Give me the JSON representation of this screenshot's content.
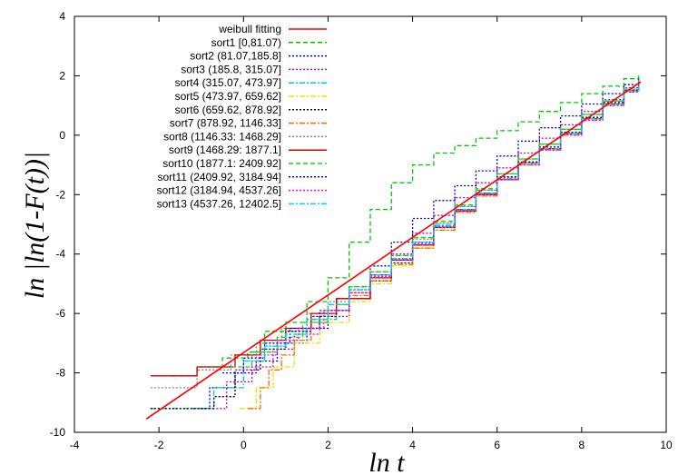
{
  "chart_data": {
    "type": "line",
    "xlabel": "ln t",
    "ylabel": "ln |ln(1-F(t))|",
    "xlim": [
      -4,
      10
    ],
    "ylim": [
      -10,
      4
    ],
    "xticks": [
      "-4",
      "-2",
      "0",
      "2",
      "4",
      "6",
      "8",
      "10"
    ],
    "yticks": [
      "-10",
      "-8",
      "-6",
      "-4",
      "-2",
      "0",
      "2",
      "4"
    ],
    "legend_position": "top-left",
    "series": [
      {
        "name": "weibull fitting",
        "color": "#ff0000",
        "dash": "solid",
        "step": false,
        "x": [
          -2.3,
          9.4
        ],
        "y": [
          -9.55,
          1.8
        ]
      },
      {
        "name": "sort1 [0,81.07)",
        "color": "#00c800",
        "dash": "dashed",
        "step": true,
        "x": [
          -1.7,
          -1.1,
          -0.5,
          0.1,
          0.5,
          1.0,
          1.5,
          2.0,
          2.5,
          3.0,
          3.5,
          4.0,
          4.5,
          5.0,
          5.5,
          6.0,
          6.5,
          7.0,
          7.5,
          8.0,
          8.5,
          9.0,
          9.35
        ],
        "y": [
          -8.1,
          -7.8,
          -7.5,
          -7.3,
          -6.6,
          -6.3,
          -5.6,
          -4.8,
          -3.6,
          -2.5,
          -1.6,
          -1.0,
          -0.6,
          -0.35,
          -0.1,
          0.15,
          0.45,
          0.8,
          1.1,
          1.4,
          1.65,
          1.9,
          2.05
        ]
      },
      {
        "name": "sort2 (81.07,185.8]",
        "color": "#0000cc",
        "dash": "dotted",
        "step": true,
        "x": [
          -1.2,
          -0.8,
          -0.2,
          0.3,
          0.8,
          1.5,
          2.0,
          2.5,
          3.0,
          3.5,
          4.0,
          4.5,
          5.0,
          5.5,
          6.0,
          6.5,
          7.0,
          7.5,
          8.0,
          8.5,
          9.0,
          9.35
        ],
        "y": [
          -9.2,
          -8.5,
          -8.0,
          -7.6,
          -7.0,
          -6.5,
          -5.9,
          -5.2,
          -4.4,
          -3.6,
          -2.8,
          -2.2,
          -1.7,
          -1.2,
          -0.7,
          -0.2,
          0.25,
          0.65,
          1.05,
          1.4,
          1.7,
          1.9
        ]
      },
      {
        "name": "sort3 (185.8, 315.07]",
        "color": "#cc00cc",
        "dash": "dotted",
        "step": true,
        "x": [
          -0.9,
          -0.4,
          0.2,
          0.7,
          1.2,
          1.8,
          2.5,
          3.0,
          3.5,
          4.0,
          4.5,
          5.0,
          5.5,
          6.0,
          6.5,
          7.0,
          7.5,
          8.0,
          8.5,
          9.0,
          9.35
        ],
        "y": [
          -9.2,
          -8.3,
          -7.8,
          -7.2,
          -6.7,
          -6.1,
          -5.3,
          -4.7,
          -4.0,
          -3.3,
          -2.7,
          -2.1,
          -1.6,
          -1.1,
          -0.6,
          -0.1,
          0.35,
          0.8,
          1.2,
          1.6,
          1.85
        ]
      },
      {
        "name": "sort4 (315.07, 473.97]",
        "color": "#00cccc",
        "dash": "dashdot",
        "step": true,
        "x": [
          -2.2,
          -0.7,
          0.0,
          0.5,
          1.0,
          1.6,
          2.2,
          3.0,
          3.5,
          4.0,
          4.5,
          5.0,
          5.5,
          6.0,
          6.5,
          7.0,
          7.5,
          8.0,
          8.5,
          9.0,
          9.35
        ],
        "y": [
          -9.2,
          -8.5,
          -7.6,
          -7.1,
          -6.6,
          -6.2,
          -5.5,
          -4.8,
          -4.2,
          -3.6,
          -3.0,
          -2.4,
          -1.85,
          -1.3,
          -0.8,
          -0.3,
          0.2,
          0.7,
          1.15,
          1.55,
          1.85
        ]
      },
      {
        "name": "sort5 (473.97, 659.62]",
        "color": "#e6e600",
        "dash": "dashdot",
        "step": true,
        "x": [
          -0.1,
          0.3,
          0.7,
          1.2,
          1.8,
          2.5,
          3.0,
          3.5,
          4.0,
          4.5,
          5.0,
          5.5,
          6.0,
          6.5,
          7.0,
          7.5,
          8.0,
          8.5,
          9.0,
          9.35
        ],
        "y": [
          -9.2,
          -8.5,
          -7.8,
          -7.0,
          -6.3,
          -5.6,
          -5.0,
          -4.4,
          -3.8,
          -3.2,
          -2.6,
          -2.05,
          -1.5,
          -1.0,
          -0.45,
          0.05,
          0.55,
          1.05,
          1.5,
          1.8
        ]
      },
      {
        "name": "sort6 (659.62, 878.92]",
        "color": "#000000",
        "dash": "dotted",
        "step": true,
        "x": [
          -2.2,
          -0.7,
          -0.2,
          0.4,
          1.0,
          1.6,
          2.2,
          3.0,
          3.5,
          4.0,
          4.5,
          5.0,
          5.5,
          6.0,
          6.5,
          7.0,
          7.5,
          8.0,
          8.5,
          9.0,
          9.35
        ],
        "y": [
          -9.2,
          -8.8,
          -7.9,
          -7.2,
          -6.6,
          -6.1,
          -5.5,
          -4.9,
          -4.3,
          -3.7,
          -3.1,
          -2.5,
          -1.95,
          -1.4,
          -0.9,
          -0.4,
          0.1,
          0.6,
          1.1,
          1.5,
          1.8
        ]
      },
      {
        "name": "sort7 (878.92, 1146.33]",
        "color": "#ff6600",
        "dash": "dashdot",
        "step": true,
        "x": [
          0.1,
          0.4,
          0.6,
          0.9,
          1.2,
          1.6,
          2.0,
          2.5,
          3.0,
          3.5,
          4.0,
          4.5,
          5.0,
          5.5,
          6.0,
          6.5,
          7.0,
          7.5,
          8.0,
          8.5,
          9.0,
          9.35
        ],
        "y": [
          -9.2,
          -8.5,
          -7.9,
          -7.4,
          -6.9,
          -6.3,
          -5.9,
          -5.4,
          -4.9,
          -4.35,
          -3.8,
          -3.2,
          -2.6,
          -2.05,
          -1.5,
          -1.0,
          -0.5,
          0.0,
          0.5,
          1.0,
          1.45,
          1.8
        ]
      },
      {
        "name": "sort8 (1146.33: 1468.29]",
        "color": "#888888",
        "dash": "dotted",
        "step": true,
        "x": [
          -2.2,
          -1.1,
          -0.3,
          0.3,
          0.9,
          1.5,
          2.0,
          2.5,
          3.0,
          3.5,
          4.0,
          4.5,
          5.0,
          5.5,
          6.0,
          6.5,
          7.0,
          7.5,
          8.0,
          8.5,
          9.0,
          9.35
        ],
        "y": [
          -8.5,
          -7.9,
          -7.4,
          -7.0,
          -6.5,
          -6.0,
          -5.6,
          -5.1,
          -4.6,
          -4.05,
          -3.5,
          -2.95,
          -2.4,
          -1.85,
          -1.3,
          -0.8,
          -0.3,
          0.2,
          0.7,
          1.15,
          1.55,
          1.85
        ]
      },
      {
        "name": "sort9 (1468.29: 1877.1]",
        "color": "#cc0000",
        "dash": "solid",
        "step": true,
        "x": [
          -2.2,
          -1.1,
          -0.2,
          0.4,
          1.0,
          1.6,
          2.2,
          3.0,
          3.5,
          4.0,
          4.5,
          5.0,
          5.5,
          6.0,
          6.5,
          7.0,
          7.5,
          8.0,
          8.5,
          9.0,
          9.35
        ],
        "y": [
          -8.1,
          -7.8,
          -7.4,
          -6.9,
          -6.5,
          -6.0,
          -5.5,
          -4.8,
          -4.2,
          -3.7,
          -3.1,
          -2.55,
          -2.0,
          -1.5,
          -0.95,
          -0.45,
          0.05,
          0.55,
          1.05,
          1.5,
          1.8
        ]
      },
      {
        "name": "sort10 (1877.1: 2409.92]",
        "color": "#00e600",
        "dash": "dashed",
        "step": true,
        "x": [
          -0.3,
          0.2,
          0.8,
          1.4,
          2.0,
          2.5,
          3.0,
          3.5,
          4.0,
          4.5,
          5.0,
          5.5,
          6.0,
          6.5,
          7.0,
          7.5,
          8.0,
          8.5,
          9.0,
          9.35
        ],
        "y": [
          -7.8,
          -7.3,
          -6.8,
          -6.3,
          -5.7,
          -5.1,
          -4.6,
          -4.05,
          -3.45,
          -2.9,
          -2.35,
          -1.8,
          -1.3,
          -0.8,
          -0.3,
          0.2,
          0.7,
          1.15,
          1.55,
          1.85
        ]
      },
      {
        "name": "sort11 (2409.92, 3184.94]",
        "color": "#0000ff",
        "dash": "dotted",
        "step": true,
        "x": [
          -0.5,
          0.0,
          0.5,
          1.1,
          1.8,
          2.5,
          3.0,
          3.5,
          4.0,
          4.5,
          5.0,
          5.5,
          6.0,
          6.5,
          7.0,
          7.5,
          8.0,
          8.5,
          9.0,
          9.35
        ],
        "y": [
          -8.0,
          -7.5,
          -7.0,
          -6.5,
          -5.9,
          -5.2,
          -4.7,
          -4.15,
          -3.6,
          -3.05,
          -2.5,
          -1.95,
          -1.45,
          -0.95,
          -0.45,
          0.05,
          0.55,
          1.05,
          1.5,
          1.8
        ]
      },
      {
        "name": "sort12 (3184.94, 4537.26]",
        "color": "#ff00ff",
        "dash": "dotted",
        "step": true,
        "x": [
          -0.2,
          0.3,
          0.8,
          1.3,
          1.9,
          2.5,
          3.0,
          3.5,
          4.0,
          4.5,
          5.0,
          5.5,
          6.0,
          6.5,
          7.0,
          7.5,
          8.0,
          8.5,
          9.0,
          9.35
        ],
        "y": [
          -7.9,
          -7.4,
          -6.9,
          -6.5,
          -5.9,
          -5.3,
          -4.75,
          -4.2,
          -3.65,
          -3.1,
          -2.55,
          -2.0,
          -1.5,
          -1.0,
          -0.5,
          0.0,
          0.5,
          1.0,
          1.45,
          1.8
        ]
      },
      {
        "name": "sort13 (4537.26, 12402.5]",
        "color": "#00d0ff",
        "dash": "dashdot",
        "step": true,
        "x": [
          0.0,
          0.5,
          1.0,
          1.5,
          2.0,
          2.5,
          3.0,
          3.5,
          4.0,
          4.5,
          5.0,
          5.5,
          6.0,
          6.5,
          7.0,
          7.5,
          8.0,
          8.5,
          9.0,
          9.35
        ],
        "y": [
          -7.6,
          -7.1,
          -6.7,
          -6.2,
          -5.7,
          -5.2,
          -4.7,
          -4.15,
          -3.6,
          -3.05,
          -2.5,
          -1.95,
          -1.45,
          -0.95,
          -0.45,
          0.05,
          0.55,
          1.05,
          1.5,
          1.8
        ]
      }
    ]
  }
}
